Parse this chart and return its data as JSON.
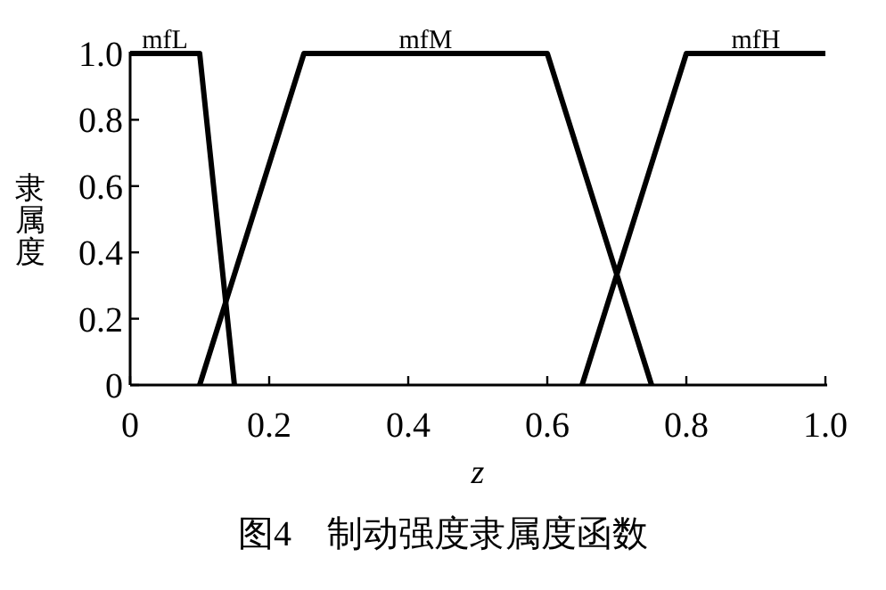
{
  "chart_data": {
    "type": "line",
    "xlabel": "z",
    "ylabel": "隶属度",
    "annotations": [
      "图4　制动强度隶属度函数"
    ],
    "xlim": [
      0,
      1
    ],
    "ylim": [
      0,
      1
    ],
    "xticks": [
      0,
      {
        "value": 0.2,
        "label": "0.2"
      },
      {
        "value": 0.4,
        "label": "0.4"
      },
      {
        "value": 0.6,
        "label": "0.6"
      },
      {
        "value": 0.8,
        "label": "0.8"
      },
      {
        "value": 1,
        "label": "1.0"
      }
    ],
    "yticks": [
      0,
      {
        "value": 0.2,
        "label": "0.2"
      },
      {
        "value": 0.4,
        "label": "0.4"
      },
      {
        "value": 0.6,
        "label": "0.6"
      },
      {
        "value": 0.8,
        "label": "0.8"
      },
      {
        "value": 1,
        "label": "1.0"
      }
    ],
    "grid": false,
    "legend": false,
    "marker": "none",
    "line_style": "solid",
    "series": [
      {
        "name": "mfL",
        "color": "#000000",
        "x": [
          0,
          0.1,
          0.15
        ],
        "values": [
          1,
          1,
          0
        ]
      },
      {
        "name": "mfM",
        "color": "#000000",
        "x": [
          0.1,
          0.25,
          0.6,
          0.75
        ],
        "values": [
          0,
          1,
          1,
          0
        ]
      },
      {
        "name": "mfH",
        "color": "#000000",
        "x": [
          0.65,
          0.8,
          1
        ],
        "values": [
          0,
          1,
          1
        ]
      }
    ]
  }
}
